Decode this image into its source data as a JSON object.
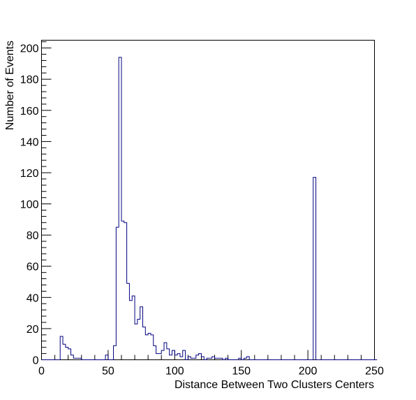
{
  "chart_data": {
    "type": "histogram",
    "title": "",
    "xlabel": "Distance Between Two Clusters Centers",
    "ylabel": "Number of Events",
    "xlim": [
      0,
      250
    ],
    "ylim": [
      0,
      205
    ],
    "bin_width": 2,
    "x_ticks": [
      0,
      50,
      100,
      150,
      200,
      250
    ],
    "y_ticks": [
      0,
      20,
      40,
      60,
      80,
      100,
      120,
      140,
      160,
      180,
      200
    ],
    "x_tick_labels": [
      "0",
      "50",
      "100",
      "150",
      "200",
      "250"
    ],
    "y_tick_labels": [
      "0",
      "20",
      "40",
      "60",
      "80",
      "100",
      "120",
      "140",
      "160",
      "180",
      "200"
    ],
    "grid": false,
    "legend": "none",
    "line_color": "#000080",
    "bin_edges_start": 0,
    "values": [
      0,
      0,
      0,
      0,
      0,
      0,
      0,
      15,
      10,
      8,
      7,
      3,
      1,
      1,
      1,
      0,
      0,
      0,
      0,
      0,
      0,
      0,
      0,
      0,
      3,
      0,
      0,
      9,
      85,
      194,
      89,
      88,
      49,
      38,
      41,
      23,
      26,
      34,
      21,
      16,
      17,
      16,
      9,
      4,
      4,
      6,
      11,
      7,
      3,
      6,
      3,
      4,
      2,
      6,
      0,
      2,
      1,
      1,
      3,
      4,
      2,
      0,
      1,
      1,
      2,
      1,
      1,
      1,
      0,
      1,
      0,
      0,
      0,
      0,
      1,
      0,
      1,
      2,
      0,
      0,
      0,
      0,
      0,
      0,
      0,
      0,
      0,
      0,
      0,
      0,
      0,
      0,
      0,
      0,
      0,
      0,
      0,
      0,
      0,
      0,
      0,
      0,
      117,
      0,
      0,
      0,
      0,
      0,
      0,
      0,
      0,
      0,
      0,
      0,
      0,
      0,
      0,
      0,
      0,
      0,
      0,
      0,
      0,
      0,
      0,
      0
    ]
  }
}
